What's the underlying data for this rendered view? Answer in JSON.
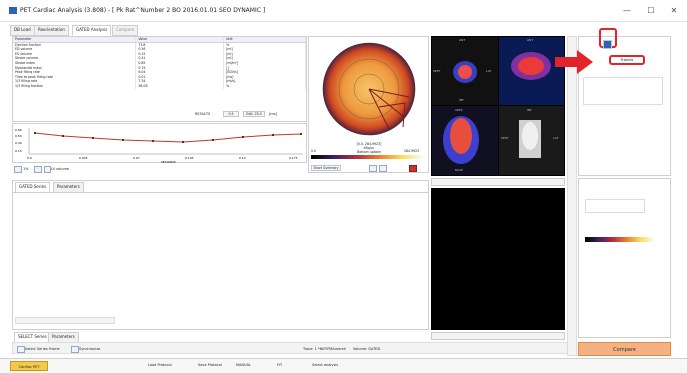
{
  "window": {
    "title": "PET Cardiac Analysis (3.808) - [ Pk Rat^Number 2 BO 2016.01.01 SEO DYNAMIC ]",
    "minimize": "—",
    "maximize": "☐",
    "close": "✕"
  },
  "tabs": [
    {
      "label": "DB Load"
    },
    {
      "label": "Reorientation"
    },
    {
      "label": "GATED Analysis"
    },
    {
      "label": "Compare"
    }
  ],
  "params_table": {
    "headers": [
      "Parameter",
      "Value",
      "Unit"
    ],
    "rows": [
      [
        "Ejection fraction",
        "73.8",
        "%"
      ],
      [
        "ED volume",
        "0.56",
        "[ml]"
      ],
      [
        "ES volume",
        "0.15",
        "[ml]"
      ],
      [
        "Stroke volume",
        "0.41",
        "[ml]"
      ],
      [
        "Stroke index",
        "0.85",
        "[ml/m²]"
      ],
      [
        "Myocardial mass",
        "0.79",
        "[]"
      ],
      [
        "Peak filling rate",
        "6.04",
        "[EDV/s]"
      ],
      [
        "Time to peak filling rate",
        "0.01",
        "[ms]"
      ],
      [
        "1/3 filling rate",
        "7.34",
        "[ml/s]"
      ],
      [
        "1/3 filling fraction",
        "36.08",
        "%"
      ]
    ]
  },
  "results_controls": {
    "label": "RESULTS",
    "value1": "0.5",
    "value2": "Edit: 25.0",
    "unit": "[ms]"
  },
  "volume_chart": {
    "y_ticks": [
      "0.56",
      "0.50",
      "0.30",
      "0.15"
    ],
    "x_ticks": [
      "0.0",
      "0.035",
      "0.07",
      "0.105",
      "0.14",
      "0.175"
    ],
    "xlabel": "SECONDS"
  },
  "volume_controls": {
    "zoom": "1%",
    "checkbox_label": "LV volume"
  },
  "polar_map": {
    "label_line1": "[0.0, 284.9923]",
    "label_line2": "kBq/cc",
    "label_line3": "Bottom uptake",
    "scale_min": "0.0",
    "scale_max": "284.9923",
    "mode": "Short Summary"
  },
  "image_grid": {
    "labels": [
      "ANT",
      "SEPT",
      "LAT",
      "INF",
      "ANT",
      "APEX",
      "BASE",
      "INF",
      "SEPT",
      "LAT"
    ]
  },
  "lower_tabs": [
    {
      "label": "GATED Series"
    },
    {
      "label": "Parameters"
    }
  ],
  "lower_bottom_tabs": [
    {
      "label": "SELECT Series"
    },
    {
      "label": "Parameters"
    }
  ],
  "status_line": {
    "select_label": "Select Series Frame",
    "checkbox_label": "Synchronize",
    "trace": "Trace: 1 *NEP.PMAmoreh",
    "volume": "Volume: GATED"
  },
  "right_panel": {
    "popup_label": "Frames",
    "compare_button": "Compare"
  },
  "taskbar": {
    "app": "Cardiac PET",
    "load_protocol": "Load Protocol",
    "save_protocol": "Save Protocol",
    "manual": "MANUAL",
    "fit": "FIT",
    "select_analysis": "Select analysis"
  },
  "colors": {
    "accent_red": "#e3232b",
    "window_bg": "#ffffff",
    "panel_border": "#d0d0d0",
    "orange_button": "#f4b183"
  }
}
